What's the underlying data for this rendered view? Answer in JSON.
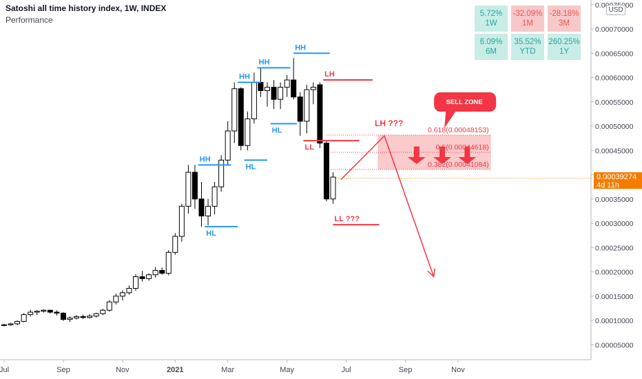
{
  "header": {
    "title": "Satoshi all time history index, 1W, INDEX",
    "subtitle": "Performance"
  },
  "performance": [
    {
      "value": "5.72%",
      "period": "1W",
      "sign": "pos"
    },
    {
      "value": "-32.09%",
      "period": "1M",
      "sign": "neg"
    },
    {
      "value": "-28.18%",
      "period": "3M",
      "sign": "neg"
    },
    {
      "value": "6.09%",
      "period": "6M",
      "sign": "pos"
    },
    {
      "value": "35.52%",
      "period": "YTD",
      "sign": "pos"
    },
    {
      "value": "260.25%",
      "period": "1Y",
      "sign": "pos"
    }
  ],
  "currency": "USD",
  "last_price": {
    "value": "0.00039274",
    "countdown": "4d 11h"
  },
  "colors": {
    "hh_hl": "#2196f3",
    "lh_ll": "#f23645",
    "zone": "#f8a6a8",
    "up": "#ffffff",
    "down": "#000000",
    "tag": "#f57c00"
  },
  "chart_data": {
    "type": "candlestick",
    "y_axis": {
      "ticks": [
        5e-05,
        0.0001,
        0.00015,
        0.0002,
        0.00025,
        0.0003,
        0.00035,
        0.0004,
        0.00045,
        0.0005,
        0.00055,
        0.0006,
        0.00065,
        0.0007,
        0.00075
      ],
      "tick_labels": [
        "0.00005000",
        "0.00010000",
        "0.00015000",
        "0.00020000",
        "0.00025000",
        "0.00030000",
        "0.00035000",
        "0.00040000",
        "0.00045000",
        "0.00050000",
        "0.00055000",
        "0.00060000",
        "0.00065000",
        "0.00070000",
        "0.00075000"
      ],
      "range": [
        1e-05,
        0.00077
      ]
    },
    "x_axis": {
      "labels": [
        "Jul",
        "Sep",
        "Nov",
        "2021",
        "Mar",
        "May",
        "Jul",
        "Sep",
        "Nov"
      ],
      "label_week": [
        0,
        9,
        18,
        26,
        34,
        43,
        52,
        61,
        69
      ]
    },
    "candles": [
      {
        "w": 0,
        "o": 9e-05,
        "h": 9.3e-05,
        "l": 8.8e-05,
        "c": 9.1e-05
      },
      {
        "w": 1,
        "o": 9.1e-05,
        "h": 9.5e-05,
        "l": 8.9e-05,
        "c": 9.3e-05
      },
      {
        "w": 2,
        "o": 9.3e-05,
        "h": 0.0001,
        "l": 9e-05,
        "c": 9.8e-05
      },
      {
        "w": 3,
        "o": 9.8e-05,
        "h": 0.000115,
        "l": 9.6e-05,
        "c": 0.000112
      },
      {
        "w": 4,
        "o": 0.000112,
        "h": 0.000122,
        "l": 0.000108,
        "c": 0.000117
      },
      {
        "w": 5,
        "o": 0.000117,
        "h": 0.000121,
        "l": 0.000111,
        "c": 0.000119
      },
      {
        "w": 6,
        "o": 0.000119,
        "h": 0.000123,
        "l": 0.000116,
        "c": 0.000121
      },
      {
        "w": 7,
        "o": 0.000121,
        "h": 0.000122,
        "l": 0.000114,
        "c": 0.000117
      },
      {
        "w": 8,
        "o": 0.000117,
        "h": 0.000121,
        "l": 0.00011,
        "c": 0.000115
      },
      {
        "w": 9,
        "o": 0.000115,
        "h": 0.000117,
        "l": 9.9e-05,
        "c": 0.000102
      },
      {
        "w": 10,
        "o": 0.000102,
        "h": 0.000108,
        "l": 9.7e-05,
        "c": 0.000105
      },
      {
        "w": 11,
        "o": 0.000105,
        "h": 0.000111,
        "l": 0.000102,
        "c": 0.000108
      },
      {
        "w": 12,
        "o": 0.000108,
        "h": 0.000112,
        "l": 0.000103,
        "c": 0.000106
      },
      {
        "w": 13,
        "o": 0.000106,
        "h": 0.000113,
        "l": 0.000104,
        "c": 0.000109
      },
      {
        "w": 14,
        "o": 0.000109,
        "h": 0.000116,
        "l": 0.000106,
        "c": 0.000114
      },
      {
        "w": 15,
        "o": 0.000114,
        "h": 0.000124,
        "l": 0.000111,
        "c": 0.000121
      },
      {
        "w": 16,
        "o": 0.000121,
        "h": 0.000142,
        "l": 0.000118,
        "c": 0.000138
      },
      {
        "w": 17,
        "o": 0.000138,
        "h": 0.000155,
        "l": 0.000133,
        "c": 0.00015
      },
      {
        "w": 18,
        "o": 0.00015,
        "h": 0.000162,
        "l": 0.000141,
        "c": 0.000157
      },
      {
        "w": 19,
        "o": 0.000157,
        "h": 0.000172,
        "l": 0.000153,
        "c": 0.000166
      },
      {
        "w": 20,
        "o": 0.000166,
        "h": 0.000195,
        "l": 0.000161,
        "c": 0.00019
      },
      {
        "w": 21,
        "o": 0.00019,
        "h": 0.000202,
        "l": 0.00018,
        "c": 0.000186
      },
      {
        "w": 22,
        "o": 0.000186,
        "h": 0.000197,
        "l": 0.000182,
        "c": 0.000194
      },
      {
        "w": 23,
        "o": 0.000194,
        "h": 0.00021,
        "l": 0.000188,
        "c": 0.000203
      },
      {
        "w": 24,
        "o": 0.000203,
        "h": 0.000209,
        "l": 0.000194,
        "c": 0.000197
      },
      {
        "w": 25,
        "o": 0.000197,
        "h": 0.000245,
        "l": 0.000193,
        "c": 0.00024
      },
      {
        "w": 26,
        "o": 0.00024,
        "h": 0.00028,
        "l": 0.000235,
        "c": 0.000273
      },
      {
        "w": 27,
        "o": 0.000273,
        "h": 0.00034,
        "l": 0.000262,
        "c": 0.000335
      },
      {
        "w": 28,
        "o": 0.000335,
        "h": 0.00042,
        "l": 0.00032,
        "c": 0.000405
      },
      {
        "w": 29,
        "o": 0.000405,
        "h": 0.00042,
        "l": 0.00033,
        "c": 0.00035
      },
      {
        "w": 30,
        "o": 0.00035,
        "h": 0.000385,
        "l": 0.000293,
        "c": 0.000315
      },
      {
        "w": 31,
        "o": 0.000315,
        "h": 0.00035,
        "l": 0.000296,
        "c": 0.000335
      },
      {
        "w": 32,
        "o": 0.000335,
        "h": 0.000385,
        "l": 0.000318,
        "c": 0.000375
      },
      {
        "w": 33,
        "o": 0.000375,
        "h": 0.00044,
        "l": 0.000365,
        "c": 0.00043
      },
      {
        "w": 34,
        "o": 0.00043,
        "h": 0.00051,
        "l": 0.00042,
        "c": 0.00049
      },
      {
        "w": 35,
        "o": 0.00049,
        "h": 0.00059,
        "l": 0.000465,
        "c": 0.000577
      },
      {
        "w": 36,
        "o": 0.000577,
        "h": 0.00058,
        "l": 0.00045,
        "c": 0.00046
      },
      {
        "w": 37,
        "o": 0.00046,
        "h": 0.00053,
        "l": 0.00045,
        "c": 0.000515
      },
      {
        "w": 38,
        "o": 0.000515,
        "h": 0.00061,
        "l": 0.000505,
        "c": 0.00059
      },
      {
        "w": 39,
        "o": 0.00059,
        "h": 0.00062,
        "l": 0.00056,
        "c": 0.000573
      },
      {
        "w": 40,
        "o": 0.000573,
        "h": 0.00059,
        "l": 0.00054,
        "c": 0.00058
      },
      {
        "w": 41,
        "o": 0.00058,
        "h": 0.000595,
        "l": 0.000535,
        "c": 0.000555
      },
      {
        "w": 42,
        "o": 0.000555,
        "h": 0.00059,
        "l": 0.000535,
        "c": 0.00058
      },
      {
        "w": 43,
        "o": 0.00058,
        "h": 0.000605,
        "l": 0.00056,
        "c": 0.000595
      },
      {
        "w": 44,
        "o": 0.000595,
        "h": 0.00064,
        "l": 0.000555,
        "c": 0.00056
      },
      {
        "w": 45,
        "o": 0.00056,
        "h": 0.00057,
        "l": 0.00048,
        "c": 0.00051
      },
      {
        "w": 46,
        "o": 0.00051,
        "h": 0.000585,
        "l": 0.000485,
        "c": 0.000575
      },
      {
        "w": 47,
        "o": 0.000575,
        "h": 0.00059,
        "l": 0.000545,
        "c": 0.00058
      },
      {
        "w": 48,
        "o": 0.000585,
        "h": 0.00059,
        "l": 0.000455,
        "c": 0.000465
      },
      {
        "w": 49,
        "o": 0.000465,
        "h": 0.00047,
        "l": 0.000345,
        "c": 0.00035
      },
      {
        "w": 50,
        "o": 0.00035,
        "h": 0.000405,
        "l": 0.00034,
        "c": 0.000395
      }
    ],
    "swing_levels": [
      {
        "label": "HH",
        "kind": "hh_hl",
        "value": 0.00042,
        "from_w": 29.5,
        "to_w": 34.5,
        "label_pos": "above"
      },
      {
        "label": "HL",
        "kind": "hh_hl",
        "value": 0.000293,
        "from_w": 30.5,
        "to_w": 35.5,
        "label_pos": "below"
      },
      {
        "label": "HH",
        "kind": "hh_hl",
        "value": 0.00059,
        "from_w": 35.5,
        "to_w": 39,
        "label_pos": "above"
      },
      {
        "label": "HL",
        "kind": "hh_hl",
        "value": 0.00043,
        "from_w": 36.5,
        "to_w": 40,
        "label_pos": "below"
      },
      {
        "label": "HH",
        "kind": "hh_hl",
        "value": 0.00062,
        "from_w": 38.5,
        "to_w": 43.5,
        "label_pos": "above"
      },
      {
        "label": "HL",
        "kind": "hh_hl",
        "value": 0.000505,
        "from_w": 40.5,
        "to_w": 44.5,
        "label_pos": "below"
      },
      {
        "label": "HH",
        "kind": "hh_hl",
        "value": 0.00065,
        "from_w": 44,
        "to_w": 49.5,
        "label_pos": "above"
      },
      {
        "label": "LH",
        "kind": "lh_ll",
        "value": 0.000595,
        "from_w": 48.5,
        "to_w": 56,
        "label_pos": "above"
      },
      {
        "label": "LL",
        "kind": "lh_ll",
        "value": 0.00047,
        "from_w": 45.5,
        "to_w": 54,
        "label_pos": "below"
      },
      {
        "label": "LL ???",
        "kind": "lh_ll",
        "value": 0.000297,
        "from_w": 50,
        "to_w": 57,
        "label_pos": "above"
      }
    ],
    "fibonacci": {
      "levels": [
        {
          "ratio": 0.618,
          "price": 0.00048153,
          "label": "0.618(0.00048153)"
        },
        {
          "ratio": 0.5,
          "price": 0.00044618,
          "label": "0.5(0.00044618)"
        },
        {
          "ratio": 0.382,
          "price": 0.00041084,
          "label": "0.382(0.00041084)"
        }
      ],
      "from_w": 49,
      "to_w": 74
    },
    "sell_zone": {
      "label": "SELL ZONE",
      "top": 0.00048153,
      "bottom": 0.00041084,
      "from_w": 56.8,
      "to_w": 74
    },
    "projection": {
      "label": "LH ???",
      "points": [
        {
          "w": 51.2,
          "p": 0.00039
        },
        {
          "w": 57.8,
          "p": 0.00048
        },
        {
          "w": 65.3,
          "p": 0.00019
        }
      ]
    },
    "current_price": 0.00039274
  }
}
